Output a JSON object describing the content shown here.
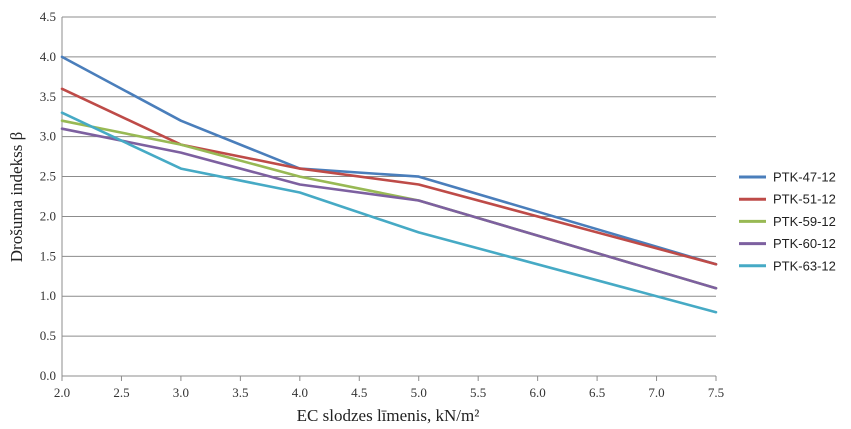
{
  "chart_data": {
    "type": "line",
    "title": "",
    "xlabel": "EC slodzes līmenis, kN/m²",
    "ylabel": "Drošuma indekss β",
    "xlim": [
      2.0,
      7.5
    ],
    "ylim": [
      0.0,
      4.5
    ],
    "x_ticks": [
      "2.0",
      "2.5",
      "3.0",
      "3.5",
      "4.0",
      "4.5",
      "5.0",
      "5.5",
      "6.0",
      "6.5",
      "7.0",
      "7.5"
    ],
    "y_ticks": [
      "0.0",
      "0.5",
      "1.0",
      "1.5",
      "2.0",
      "2.5",
      "3.0",
      "3.5",
      "4.0",
      "4.5"
    ],
    "grid": "horizontal",
    "legend_position": "right",
    "x": [
      2.0,
      3.0,
      4.0,
      5.0,
      7.5
    ],
    "series": [
      {
        "name": "PTK-47-12",
        "color": "#4A7EBB",
        "values": [
          4.0,
          3.2,
          2.6,
          2.5,
          1.4
        ]
      },
      {
        "name": "PTK-51-12",
        "color": "#BE4B48",
        "values": [
          3.6,
          2.9,
          2.6,
          2.4,
          1.4
        ]
      },
      {
        "name": "PTK-59-12",
        "color": "#98B954",
        "values": [
          3.2,
          2.9,
          2.5,
          2.2,
          1.1
        ]
      },
      {
        "name": "PTK-60-12",
        "color": "#7D60A0",
        "values": [
          3.1,
          2.8,
          2.4,
          2.2,
          1.1
        ]
      },
      {
        "name": "PTK-63-12",
        "color": "#46AAC5",
        "values": [
          3.3,
          2.6,
          2.3,
          1.8,
          0.8
        ]
      }
    ]
  }
}
